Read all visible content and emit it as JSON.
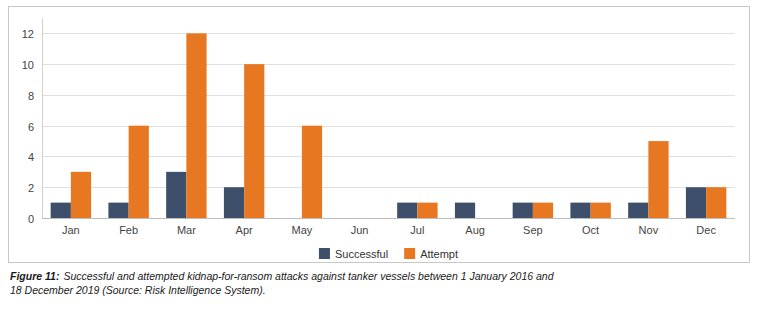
{
  "chart_data": {
    "type": "bar",
    "categories": [
      "Jan",
      "Feb",
      "Mar",
      "Apr",
      "May",
      "Jun",
      "Jul",
      "Aug",
      "Sep",
      "Oct",
      "Nov",
      "Dec"
    ],
    "series": [
      {
        "name": "Successful",
        "color": "#3D4F6B",
        "values": [
          1,
          1,
          3,
          2,
          0,
          0,
          1,
          1,
          1,
          1,
          1,
          2
        ]
      },
      {
        "name": "Attempt",
        "color": "#E87722",
        "values": [
          3,
          6,
          12,
          10,
          6,
          0,
          1,
          0,
          1,
          1,
          5,
          2
        ]
      }
    ],
    "ylim": [
      0,
      13
    ],
    "yticks": [
      0,
      2,
      4,
      6,
      8,
      10,
      12
    ],
    "grid": true,
    "legend": "bottom",
    "annotations": [
      "Figure 11:",
      "Successful and attempted kidnap-for-ransom attacks against tanker vessels between 1 January 2016 and\n18 December 2019 (Source: Risk Intelligence System)."
    ]
  }
}
